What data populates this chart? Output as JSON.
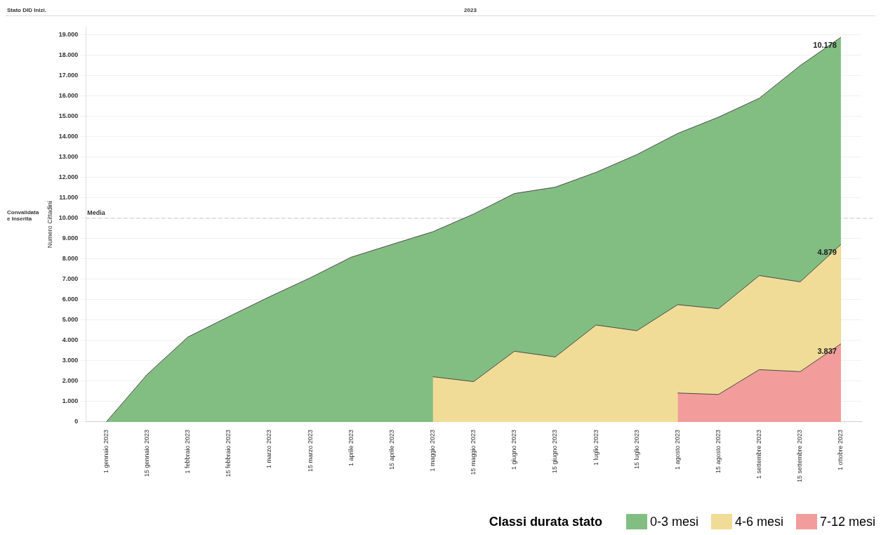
{
  "chart_data": {
    "type": "area",
    "stacked": true,
    "annotations": [
      "Stato DID Inizi.",
      "2023",
      "Convalidata e Inserita"
    ],
    "ylabel": "Numero Cittadini",
    "legend_title": "Classi durata stato",
    "categories": [
      "1 gennaio 2023",
      "15 gennaio 2023",
      "1 febbraio 2023",
      "15 febbraio 2023",
      "1 marzo 2023",
      "15 marzo 2023",
      "1 aprile 2023",
      "15 aprile 2023",
      "1 maggio 2023",
      "15 maggio 2023",
      "1 giugno 2023",
      "15 giugno 2023",
      "1 luglio 2023",
      "15 luglio 2023",
      "1 agosto 2023",
      "15 agosto 2023",
      "1 settembre 2023",
      "15 settembre 2023",
      "1 ottobre 2023"
    ],
    "series": [
      {
        "name": "7-12 mesi",
        "color": "#f29c9c",
        "values": [
          null,
          null,
          null,
          null,
          null,
          null,
          null,
          null,
          null,
          null,
          null,
          null,
          null,
          null,
          1420,
          1350,
          2570,
          2470,
          3837
        ],
        "value_labels": [
          null,
          null,
          null,
          null,
          null,
          null,
          null,
          null,
          null,
          null,
          null,
          null,
          null,
          null,
          null,
          null,
          null,
          null,
          "3.837"
        ]
      },
      {
        "name": "4-6 mesi",
        "color": "#f0dc96",
        "values": [
          null,
          null,
          null,
          null,
          null,
          null,
          null,
          null,
          2220,
          1980,
          3470,
          3190,
          4760,
          4480,
          4340,
          4210,
          4620,
          4410,
          4879
        ],
        "value_labels": [
          null,
          null,
          null,
          null,
          null,
          null,
          null,
          null,
          null,
          null,
          null,
          null,
          null,
          null,
          null,
          null,
          null,
          null,
          "4.879"
        ]
      },
      {
        "name": "0-3 mesi",
        "color": "#82be82",
        "values": [
          0,
          2330,
          4170,
          5170,
          6150,
          7080,
          8090,
          8720,
          7120,
          8230,
          7750,
          8340,
          7500,
          8650,
          8410,
          9410,
          8710,
          10620,
          10178
        ],
        "value_labels": [
          null,
          null,
          null,
          null,
          null,
          null,
          null,
          null,
          null,
          null,
          null,
          null,
          null,
          null,
          null,
          null,
          null,
          null,
          "10.178"
        ]
      }
    ],
    "ylim": [
      0,
      19400
    ],
    "yticks": [
      {
        "value": 0,
        "label": "0"
      },
      {
        "value": 1000,
        "label": "1.000"
      },
      {
        "value": 2000,
        "label": "2.000"
      },
      {
        "value": 3000,
        "label": "3.000"
      },
      {
        "value": 4000,
        "label": "4.000"
      },
      {
        "value": 5000,
        "label": "5.000"
      },
      {
        "value": 6000,
        "label": "6.000"
      },
      {
        "value": 7000,
        "label": "7.000"
      },
      {
        "value": 8000,
        "label": "8.000"
      },
      {
        "value": 9000,
        "label": "9.000"
      },
      {
        "value": 10000,
        "label": "10.000"
      },
      {
        "value": 11000,
        "label": "11.000"
      },
      {
        "value": 12000,
        "label": "12.000"
      },
      {
        "value": 13000,
        "label": "13.000"
      },
      {
        "value": 14000,
        "label": "14.000"
      },
      {
        "value": 15000,
        "label": "15.000"
      },
      {
        "value": 16000,
        "label": "16.000"
      },
      {
        "value": 17000,
        "label": "17.000"
      },
      {
        "value": 18000,
        "label": "18.000"
      },
      {
        "value": 19000,
        "label": "19.000"
      }
    ],
    "ref_lines": [
      {
        "axis": "y",
        "value": 10000,
        "label": "Media",
        "line_style": "dashed",
        "color": "#c8c8c8"
      }
    ],
    "grid": "y",
    "legend": "bottom right",
    "marker": "none"
  }
}
